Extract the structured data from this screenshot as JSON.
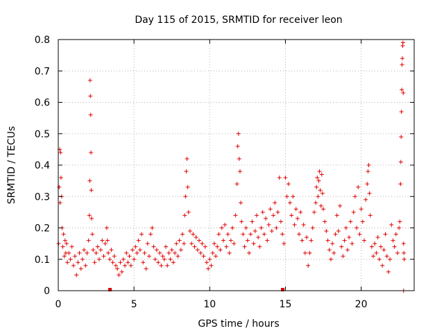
{
  "chart_data": {
    "type": "scatter",
    "title": "Day 115 of 2015, SRMTID for receiver leon",
    "xlabel": "GPS time / hours",
    "ylabel": "SRMTID / TECUs",
    "xlim": [
      0,
      23.5
    ],
    "ylim": [
      0,
      0.8
    ],
    "x_ticks": [
      "0",
      "5",
      "10",
      "15",
      "20"
    ],
    "y_ticks": [
      "0",
      "0.1",
      "0.2",
      "0.3",
      "0.4",
      "0.5",
      "0.6",
      "0.7",
      "0.8"
    ],
    "grid": true,
    "marker": "+",
    "series": [
      {
        "name": "SRMTID",
        "color": "#e00000",
        "points": [
          [
            0.02,
            0.15
          ],
          [
            0.06,
            0.33
          ],
          [
            0.1,
            0.45
          ],
          [
            0.12,
            0.28
          ],
          [
            0.15,
            0.44
          ],
          [
            0.18,
            0.36
          ],
          [
            0.22,
            0.3
          ],
          [
            0.25,
            0.2
          ],
          [
            0.3,
            0.14
          ],
          [
            0.35,
            0.18
          ],
          [
            0.4,
            0.11
          ],
          [
            0.45,
            0.16
          ],
          [
            0.5,
            0.12
          ],
          [
            0.55,
            0.15
          ],
          [
            0.6,
            0.09
          ],
          [
            0.7,
            0.12
          ],
          [
            0.8,
            0.1
          ],
          [
            0.9,
            0.14
          ],
          [
            1.0,
            0.08
          ],
          [
            1.1,
            0.11
          ],
          [
            1.2,
            0.05
          ],
          [
            1.3,
            0.09
          ],
          [
            1.4,
            0.12
          ],
          [
            1.5,
            0.07
          ],
          [
            1.6,
            0.1
          ],
          [
            1.7,
            0.13
          ],
          [
            1.8,
            0.08
          ],
          [
            1.9,
            0.12
          ],
          [
            2.0,
            0.16
          ],
          [
            2.05,
            0.24
          ],
          [
            2.08,
            0.35
          ],
          [
            2.1,
            0.67
          ],
          [
            2.12,
            0.62
          ],
          [
            2.14,
            0.56
          ],
          [
            2.16,
            0.44
          ],
          [
            2.18,
            0.32
          ],
          [
            2.2,
            0.23
          ],
          [
            2.25,
            0.18
          ],
          [
            2.3,
            0.13
          ],
          [
            2.4,
            0.09
          ],
          [
            2.5,
            0.12
          ],
          [
            2.6,
            0.14
          ],
          [
            2.7,
            0.1
          ],
          [
            2.8,
            0.13
          ],
          [
            2.9,
            0.16
          ],
          [
            3.0,
            0.11
          ],
          [
            3.1,
            0.15
          ],
          [
            3.2,
            0.2
          ],
          [
            3.25,
            0.16
          ],
          [
            3.3,
            0.12
          ],
          [
            3.4,
            0.1
          ],
          [
            3.5,
            0.13
          ],
          [
            3.6,
            0.09
          ],
          [
            3.7,
            0.11
          ],
          [
            3.8,
            0.08
          ],
          [
            3.9,
            0.07
          ],
          [
            4.0,
            0.05
          ],
          [
            4.1,
            0.09
          ],
          [
            4.2,
            0.06
          ],
          [
            4.3,
            0.1
          ],
          [
            4.4,
            0.08
          ],
          [
            4.5,
            0.12
          ],
          [
            4.6,
            0.09
          ],
          [
            4.7,
            0.11
          ],
          [
            4.8,
            0.08
          ],
          [
            4.9,
            0.13
          ],
          [
            5.0,
            0.1
          ],
          [
            5.1,
            0.14
          ],
          [
            5.2,
            0.12
          ],
          [
            5.3,
            0.16
          ],
          [
            5.4,
            0.13
          ],
          [
            5.5,
            0.18
          ],
          [
            5.6,
            0.09
          ],
          [
            5.7,
            0.12
          ],
          [
            5.8,
            0.07
          ],
          [
            5.9,
            0.15
          ],
          [
            6.0,
            0.11
          ],
          [
            6.1,
            0.18
          ],
          [
            6.2,
            0.2
          ],
          [
            6.3,
            0.14
          ],
          [
            6.4,
            0.1
          ],
          [
            6.5,
            0.13
          ],
          [
            6.6,
            0.09
          ],
          [
            6.7,
            0.12
          ],
          [
            6.8,
            0.08
          ],
          [
            6.9,
            0.11
          ],
          [
            7.0,
            0.1
          ],
          [
            7.1,
            0.14
          ],
          [
            7.2,
            0.08
          ],
          [
            7.3,
            0.12
          ],
          [
            7.4,
            0.1
          ],
          [
            7.5,
            0.13
          ],
          [
            7.6,
            0.09
          ],
          [
            7.7,
            0.12
          ],
          [
            7.8,
            0.15
          ],
          [
            7.9,
            0.11
          ],
          [
            8.0,
            0.16
          ],
          [
            8.1,
            0.13
          ],
          [
            8.2,
            0.18
          ],
          [
            8.3,
            0.15
          ],
          [
            8.35,
            0.24
          ],
          [
            8.4,
            0.3
          ],
          [
            8.45,
            0.38
          ],
          [
            8.5,
            0.42
          ],
          [
            8.55,
            0.33
          ],
          [
            8.6,
            0.25
          ],
          [
            8.7,
            0.19
          ],
          [
            8.8,
            0.15
          ],
          [
            8.9,
            0.18
          ],
          [
            9.0,
            0.14
          ],
          [
            9.1,
            0.17
          ],
          [
            9.2,
            0.13
          ],
          [
            9.3,
            0.16
          ],
          [
            9.4,
            0.12
          ],
          [
            9.5,
            0.15
          ],
          [
            9.6,
            0.11
          ],
          [
            9.7,
            0.14
          ],
          [
            9.8,
            0.09
          ],
          [
            9.9,
            0.07
          ],
          [
            10.0,
            0.1
          ],
          [
            10.1,
            0.08
          ],
          [
            10.2,
            0.12
          ],
          [
            10.3,
            0.15
          ],
          [
            10.4,
            0.11
          ],
          [
            10.5,
            0.14
          ],
          [
            10.6,
            0.18
          ],
          [
            10.7,
            0.13
          ],
          [
            10.8,
            0.2
          ],
          [
            10.9,
            0.16
          ],
          [
            11.0,
            0.21
          ],
          [
            11.1,
            0.14
          ],
          [
            11.2,
            0.18
          ],
          [
            11.3,
            0.12
          ],
          [
            11.4,
            0.16
          ],
          [
            11.5,
            0.2
          ],
          [
            11.6,
            0.15
          ],
          [
            11.7,
            0.24
          ],
          [
            11.8,
            0.34
          ],
          [
            11.85,
            0.46
          ],
          [
            11.9,
            0.5
          ],
          [
            11.95,
            0.42
          ],
          [
            12.0,
            0.38
          ],
          [
            12.05,
            0.28
          ],
          [
            12.1,
            0.22
          ],
          [
            12.2,
            0.18
          ],
          [
            12.3,
            0.14
          ],
          [
            12.4,
            0.2
          ],
          [
            12.5,
            0.16
          ],
          [
            12.6,
            0.12
          ],
          [
            12.7,
            0.18
          ],
          [
            12.8,
            0.22
          ],
          [
            12.9,
            0.15
          ],
          [
            13.0,
            0.19
          ],
          [
            13.1,
            0.24
          ],
          [
            13.2,
            0.17
          ],
          [
            13.3,
            0.14
          ],
          [
            13.4,
            0.2
          ],
          [
            13.5,
            0.25
          ],
          [
            13.6,
            0.18
          ],
          [
            13.7,
            0.23
          ],
          [
            13.8,
            0.16
          ],
          [
            13.9,
            0.21
          ],
          [
            14.0,
            0.26
          ],
          [
            14.1,
            0.19
          ],
          [
            14.2,
            0.24
          ],
          [
            14.3,
            0.28
          ],
          [
            14.4,
            0.2
          ],
          [
            14.5,
            0.25
          ],
          [
            14.6,
            0.36
          ],
          [
            14.7,
            0.22
          ],
          [
            14.8,
            0.18
          ],
          [
            14.9,
            0.15
          ],
          [
            15.0,
            0.36
          ],
          [
            15.1,
            0.3
          ],
          [
            15.2,
            0.34
          ],
          [
            15.3,
            0.28
          ],
          [
            15.4,
            0.24
          ],
          [
            15.5,
            0.3
          ],
          [
            15.6,
            0.21
          ],
          [
            15.7,
            0.26
          ],
          [
            15.8,
            0.23
          ],
          [
            15.9,
            0.18
          ],
          [
            16.0,
            0.25
          ],
          [
            16.1,
            0.16
          ],
          [
            16.2,
            0.21
          ],
          [
            16.3,
            0.12
          ],
          [
            16.4,
            0.17
          ],
          [
            16.5,
            0.08
          ],
          [
            16.6,
            0.12
          ],
          [
            16.7,
            0.16
          ],
          [
            16.8,
            0.2
          ],
          [
            16.9,
            0.25
          ],
          [
            17.0,
            0.28
          ],
          [
            17.05,
            0.33
          ],
          [
            17.1,
            0.36
          ],
          [
            17.15,
            0.3
          ],
          [
            17.2,
            0.35
          ],
          [
            17.25,
            0.38
          ],
          [
            17.3,
            0.32
          ],
          [
            17.35,
            0.27
          ],
          [
            17.4,
            0.37
          ],
          [
            17.45,
            0.31
          ],
          [
            17.5,
            0.26
          ],
          [
            17.6,
            0.22
          ],
          [
            17.7,
            0.19
          ],
          [
            17.8,
            0.16
          ],
          [
            17.9,
            0.13
          ],
          [
            18.0,
            0.1
          ],
          [
            18.1,
            0.15
          ],
          [
            18.2,
            0.12
          ],
          [
            18.3,
            0.18
          ],
          [
            18.4,
            0.24
          ],
          [
            18.5,
            0.19
          ],
          [
            18.6,
            0.27
          ],
          [
            18.7,
            0.14
          ],
          [
            18.8,
            0.11
          ],
          [
            18.9,
            0.16
          ],
          [
            19.0,
            0.2
          ],
          [
            19.1,
            0.13
          ],
          [
            19.2,
            0.17
          ],
          [
            19.3,
            0.22
          ],
          [
            19.4,
            0.15
          ],
          [
            19.5,
            0.25
          ],
          [
            19.6,
            0.3
          ],
          [
            19.7,
            0.2
          ],
          [
            19.8,
            0.33
          ],
          [
            19.9,
            0.18
          ],
          [
            20.0,
            0.26
          ],
          [
            20.1,
            0.22
          ],
          [
            20.2,
            0.16
          ],
          [
            20.3,
            0.29
          ],
          [
            20.4,
            0.34
          ],
          [
            20.45,
            0.38
          ],
          [
            20.5,
            0.4
          ],
          [
            20.55,
            0.31
          ],
          [
            20.6,
            0.24
          ],
          [
            20.7,
            0.14
          ],
          [
            20.8,
            0.11
          ],
          [
            20.9,
            0.15
          ],
          [
            21.0,
            0.12
          ],
          [
            21.1,
            0.17
          ],
          [
            21.2,
            0.1
          ],
          [
            21.3,
            0.14
          ],
          [
            21.4,
            0.08
          ],
          [
            21.5,
            0.13
          ],
          [
            21.6,
            0.18
          ],
          [
            21.7,
            0.11
          ],
          [
            21.8,
            0.06
          ],
          [
            21.9,
            0.1
          ],
          [
            22.0,
            0.21
          ],
          [
            22.1,
            0.16
          ],
          [
            22.2,
            0.14
          ],
          [
            22.3,
            0.18
          ],
          [
            22.4,
            0.12
          ],
          [
            22.5,
            0.2
          ],
          [
            22.55,
            0.22
          ],
          [
            22.6,
            0.34
          ],
          [
            22.62,
            0.41
          ],
          [
            22.64,
            0.49
          ],
          [
            22.66,
            0.57
          ],
          [
            22.68,
            0.64
          ],
          [
            22.7,
            0.72
          ],
          [
            22.72,
            0.74
          ],
          [
            22.74,
            0.78
          ],
          [
            22.76,
            0.79
          ],
          [
            22.78,
            0.63
          ],
          [
            22.8,
            0.15
          ],
          [
            22.82,
            0.12
          ],
          [
            22.84,
            0.1
          ],
          [
            22.8,
            0.0
          ]
        ]
      }
    ]
  }
}
